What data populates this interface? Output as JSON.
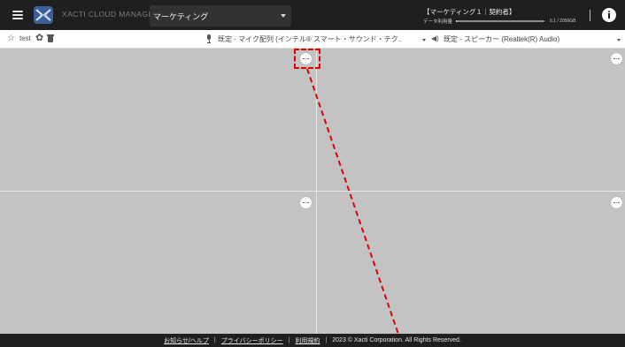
{
  "header": {
    "menu_icon": "hamburger-icon",
    "brand": "XACTI CLOUD MANAGER",
    "workspace": {
      "selected": "マーケティング"
    },
    "contract": {
      "title": "【マーケティング１｜契約者】",
      "usage_label": "データ利用量",
      "usage_value": "0.1 / 2050GB",
      "usage_fraction": 5e-05
    },
    "info_icon": "info-icon"
  },
  "toolbar": {
    "room_name": "test",
    "star_icon": "star-icon",
    "gear_icon": "gear-icon",
    "trash_icon": "trash-icon",
    "microphone": {
      "icon": "microphone-icon",
      "label": "既定 - マイク配列 (インテル® スマート・サウンド・テク.."
    },
    "speaker": {
      "icon": "speaker-icon",
      "label": "既定 - スピーカー (Realtek(R) Audio)"
    }
  },
  "grid": {
    "tiles": [
      {
        "more_icon": "more-horizontal-icon"
      },
      {
        "more_icon": "more-horizontal-icon"
      },
      {
        "more_icon": "more-horizontal-icon"
      },
      {
        "more_icon": "more-horizontal-icon"
      }
    ]
  },
  "footer": {
    "links": [
      "お知らせ/ヘルプ",
      "プライバシーポリシー",
      "利用規約"
    ],
    "copyright": "2023 © Xacti Corporation. All Rights Reserved.",
    "separator": "|"
  },
  "colors": {
    "header_bg": "#1f1f1f",
    "grid_bg": "#c3c3c3",
    "annotation": "#e00000"
  }
}
